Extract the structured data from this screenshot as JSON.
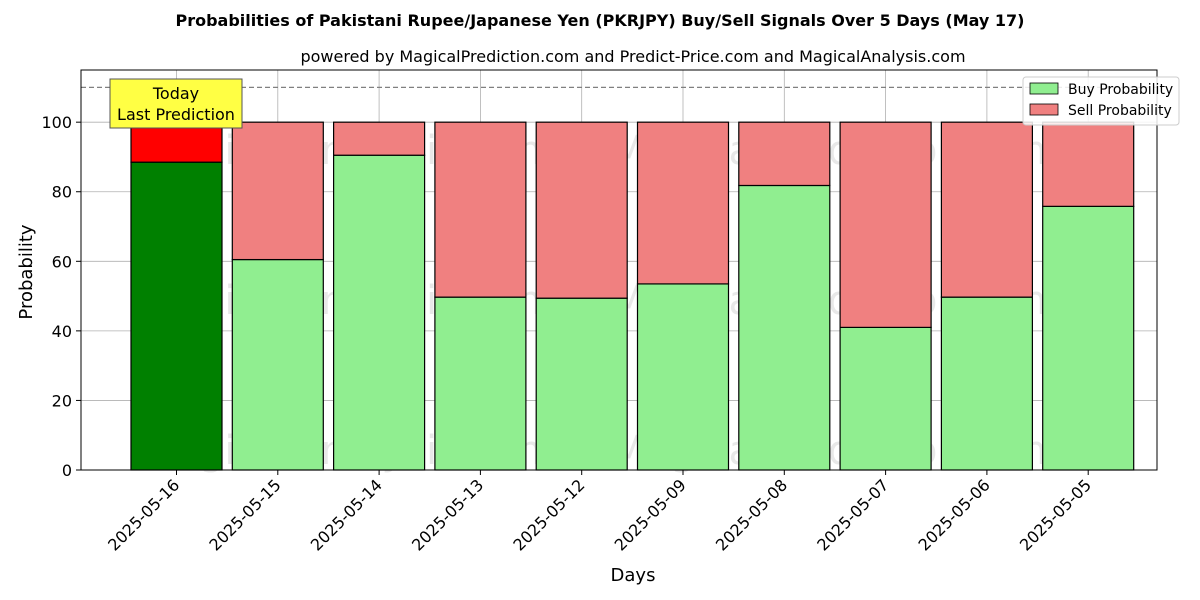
{
  "chart_data": {
    "type": "bar",
    "stacked": true,
    "title": "Probabilities of Pakistani Rupee/Japanese Yen (PKRJPY) Buy/Sell Signals Over 5 Days (May 17)",
    "subtitle": "powered by MagicalPrediction.com and Predict-Price.com and MagicalAnalysis.com",
    "xlabel": "Days",
    "ylabel": "Probability",
    "ylim": [
      0,
      115
    ],
    "yticks": [
      0,
      20,
      40,
      60,
      80,
      100
    ],
    "reference_line": 110,
    "grid": true,
    "legend_position": "top-right",
    "categories": [
      "2025-05-16",
      "2025-05-15",
      "2025-05-14",
      "2025-05-13",
      "2025-05-12",
      "2025-05-09",
      "2025-05-08",
      "2025-05-07",
      "2025-05-06",
      "2025-05-05"
    ],
    "series": [
      {
        "name": "Buy Probability",
        "color": "#90ee90",
        "highlight_color": "#008000",
        "values": [
          88.5,
          60.5,
          90.5,
          49.7,
          49.4,
          53.5,
          81.8,
          41.0,
          49.7,
          75.8
        ]
      },
      {
        "name": "Sell Probability",
        "color": "#f08080",
        "highlight_color": "#ff0000",
        "values": [
          11.5,
          39.5,
          9.5,
          50.3,
          50.6,
          46.5,
          18.2,
          59.0,
          50.3,
          24.2
        ]
      }
    ],
    "highlight_index": 0,
    "annotation": {
      "lines": [
        "Today",
        "Last Prediction"
      ],
      "color": "#ffff44"
    },
    "watermarks": [
      "MagicalAnalysis.com",
      "MagicalPrediction.com"
    ]
  }
}
